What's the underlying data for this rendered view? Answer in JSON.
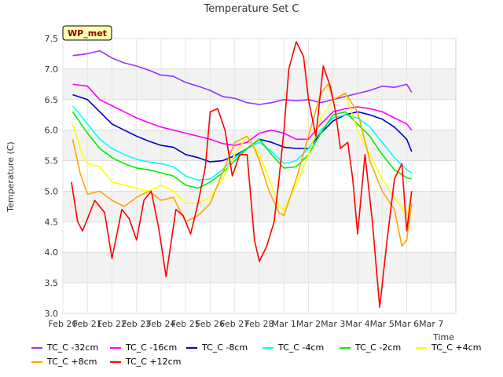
{
  "chart_data": {
    "type": "line",
    "title": "Temperature Set C",
    "xlabel": "Time",
    "ylabel": "Temperature (C)",
    "ylim": [
      3.0,
      7.5
    ],
    "yticks": [
      3.0,
      3.5,
      4.0,
      4.5,
      5.0,
      5.5,
      6.0,
      6.5,
      7.0,
      7.5
    ],
    "xlim": [
      0,
      16
    ],
    "xticks": [
      "Feb 20",
      "Feb 21",
      "Feb 22",
      "Feb 23",
      "Feb 24",
      "Feb 25",
      "Feb 26",
      "Feb 27",
      "Feb 28",
      "Mar 1",
      "Mar 2",
      "Mar 3",
      "Mar 4",
      "Mar 5",
      "Mar 6",
      "Mar 7"
    ],
    "grid": true,
    "legend_position": "bottom",
    "badge": "WP_met",
    "series": [
      {
        "name": "TC_C -32cm",
        "color": "#9b30ff",
        "x": [
          0.4,
          1.0,
          1.5,
          2.0,
          2.5,
          3.0,
          3.5,
          4.0,
          4.5,
          5.0,
          5.5,
          6.0,
          6.5,
          7.0,
          7.5,
          8.0,
          8.5,
          9.0,
          9.5,
          10.0,
          10.5,
          11.0,
          11.5,
          12.0,
          12.5,
          13.0,
          13.5,
          14.0,
          14.2
        ],
        "values": [
          7.22,
          7.25,
          7.3,
          7.18,
          7.1,
          7.05,
          6.98,
          6.9,
          6.88,
          6.78,
          6.72,
          6.65,
          6.55,
          6.52,
          6.45,
          6.42,
          6.45,
          6.5,
          6.48,
          6.5,
          6.45,
          6.5,
          6.55,
          6.6,
          6.65,
          6.72,
          6.7,
          6.75,
          6.62
        ]
      },
      {
        "name": "TC_C -16cm",
        "color": "#ff00ff",
        "x": [
          0.4,
          1.0,
          1.5,
          2.0,
          2.5,
          3.0,
          3.5,
          4.0,
          4.5,
          5.0,
          5.5,
          6.0,
          6.5,
          7.0,
          7.5,
          8.0,
          8.5,
          9.0,
          9.5,
          10.0,
          10.5,
          11.0,
          11.5,
          12.0,
          12.5,
          13.0,
          13.5,
          14.0,
          14.2
        ],
        "values": [
          6.75,
          6.72,
          6.5,
          6.4,
          6.3,
          6.2,
          6.12,
          6.05,
          6.0,
          5.95,
          5.9,
          5.85,
          5.78,
          5.75,
          5.8,
          5.95,
          6.0,
          5.95,
          5.85,
          5.85,
          6.1,
          6.3,
          6.35,
          6.38,
          6.35,
          6.3,
          6.2,
          6.1,
          6.0
        ]
      },
      {
        "name": "TC_C -8cm",
        "color": "#0000cd",
        "x": [
          0.4,
          1.0,
          1.5,
          2.0,
          2.5,
          3.0,
          3.5,
          4.0,
          4.5,
          5.0,
          5.5,
          6.0,
          6.5,
          7.0,
          7.5,
          8.0,
          8.5,
          9.0,
          9.5,
          10.0,
          10.5,
          11.0,
          11.5,
          12.0,
          12.5,
          13.0,
          13.5,
          14.0,
          14.2
        ],
        "values": [
          6.58,
          6.5,
          6.3,
          6.1,
          6.0,
          5.9,
          5.82,
          5.75,
          5.72,
          5.6,
          5.55,
          5.48,
          5.5,
          5.58,
          5.7,
          5.85,
          5.8,
          5.72,
          5.7,
          5.7,
          5.95,
          6.15,
          6.25,
          6.3,
          6.25,
          6.18,
          6.05,
          5.85,
          5.65
        ]
      },
      {
        "name": "TC_C -4cm",
        "color": "#00ffff",
        "x": [
          0.4,
          1.0,
          1.5,
          2.0,
          2.5,
          3.0,
          3.5,
          4.0,
          4.5,
          5.0,
          5.5,
          6.0,
          6.5,
          7.0,
          7.5,
          8.0,
          8.5,
          9.0,
          9.5,
          10.0,
          10.5,
          11.0,
          11.5,
          12.0,
          12.5,
          13.0,
          13.5,
          14.0,
          14.2
        ],
        "values": [
          6.4,
          6.1,
          5.85,
          5.7,
          5.6,
          5.52,
          5.48,
          5.45,
          5.4,
          5.25,
          5.18,
          5.2,
          5.35,
          5.55,
          5.7,
          5.8,
          5.65,
          5.45,
          5.5,
          5.7,
          6.0,
          6.2,
          6.25,
          6.2,
          6.05,
          5.8,
          5.55,
          5.35,
          5.3
        ]
      },
      {
        "name": "TC_C -2cm",
        "color": "#00ee00",
        "x": [
          0.4,
          1.0,
          1.5,
          2.0,
          2.5,
          3.0,
          3.5,
          4.0,
          4.5,
          5.0,
          5.5,
          6.0,
          6.5,
          7.0,
          7.5,
          8.0,
          8.5,
          9.0,
          9.5,
          10.0,
          10.5,
          11.0,
          11.5,
          12.0,
          12.5,
          13.0,
          13.5,
          14.0,
          14.2
        ],
        "values": [
          6.3,
          5.95,
          5.7,
          5.55,
          5.45,
          5.38,
          5.35,
          5.3,
          5.25,
          5.1,
          5.05,
          5.15,
          5.3,
          5.5,
          5.7,
          5.85,
          5.6,
          5.38,
          5.4,
          5.6,
          5.95,
          6.25,
          6.3,
          6.1,
          5.9,
          5.6,
          5.35,
          5.22,
          5.2
        ]
      },
      {
        "name": "TC_C +4cm",
        "color": "#ffff00",
        "x": [
          0.4,
          0.8,
          1.0,
          1.5,
          2.0,
          2.5,
          3.0,
          3.5,
          4.0,
          4.5,
          5.0,
          5.5,
          6.0,
          6.5,
          7.0,
          7.5,
          8.0,
          8.4,
          8.8,
          9.0,
          9.5,
          10.0,
          10.5,
          11.0,
          11.5,
          12.0,
          12.5,
          13.0,
          13.5,
          14.0,
          14.2
        ],
        "values": [
          6.1,
          5.6,
          5.45,
          5.4,
          5.15,
          5.1,
          5.05,
          5.0,
          5.1,
          5.0,
          4.8,
          4.8,
          4.9,
          5.2,
          5.6,
          5.9,
          5.6,
          5.2,
          4.75,
          4.7,
          5.1,
          5.6,
          6.2,
          6.5,
          6.6,
          6.0,
          5.6,
          5.2,
          4.9,
          4.6,
          4.9
        ]
      },
      {
        "name": "TC_C +8cm",
        "color": "#ffa500",
        "x": [
          0.4,
          0.7,
          1.0,
          1.5,
          2.0,
          2.5,
          3.0,
          3.5,
          4.0,
          4.5,
          5.0,
          5.5,
          6.0,
          6.5,
          7.0,
          7.5,
          7.8,
          8.0,
          8.4,
          8.8,
          9.0,
          9.5,
          10.0,
          10.5,
          10.8,
          11.0,
          11.5,
          12.0,
          12.5,
          13.0,
          13.5,
          13.8,
          14.0,
          14.2
        ],
        "values": [
          5.85,
          5.3,
          4.95,
          5.0,
          4.85,
          4.75,
          4.9,
          5.0,
          4.85,
          4.9,
          4.5,
          4.6,
          4.8,
          5.3,
          5.8,
          5.9,
          5.7,
          5.5,
          5.0,
          4.65,
          4.6,
          5.2,
          5.9,
          6.6,
          6.75,
          6.5,
          6.6,
          6.3,
          5.5,
          5.0,
          4.7,
          4.1,
          4.2,
          4.8
        ]
      },
      {
        "name": "TC_C +12cm",
        "color": "#ff0000",
        "x": [
          0.35,
          0.6,
          0.8,
          1.0,
          1.3,
          1.7,
          2.0,
          2.4,
          2.7,
          3.0,
          3.3,
          3.6,
          3.9,
          4.2,
          4.6,
          4.9,
          5.2,
          5.5,
          5.8,
          6.0,
          6.3,
          6.6,
          6.9,
          7.2,
          7.5,
          7.8,
          8.0,
          8.3,
          8.6,
          8.8,
          9.0,
          9.2,
          9.5,
          9.8,
          10.0,
          10.3,
          10.6,
          10.9,
          11.1,
          11.3,
          11.6,
          11.8,
          12.0,
          12.3,
          12.6,
          12.9,
          13.2,
          13.5,
          13.8,
          14.0,
          14.2
        ],
        "values": [
          5.15,
          4.5,
          4.35,
          4.55,
          4.85,
          4.65,
          3.9,
          4.7,
          4.55,
          4.2,
          4.85,
          5.0,
          4.4,
          3.6,
          4.7,
          4.6,
          4.3,
          4.8,
          5.4,
          6.3,
          6.35,
          6.0,
          5.25,
          5.6,
          5.6,
          4.2,
          3.85,
          4.1,
          4.5,
          5.2,
          6.0,
          7.0,
          7.45,
          7.2,
          6.5,
          5.9,
          7.05,
          6.7,
          6.3,
          5.7,
          5.8,
          5.2,
          4.3,
          5.6,
          4.5,
          3.1,
          4.2,
          5.2,
          5.45,
          4.35,
          5.0
        ]
      }
    ]
  },
  "legend": {
    "row1": [
      0,
      1,
      2,
      3,
      4,
      5
    ],
    "row2": [
      6,
      7
    ]
  }
}
